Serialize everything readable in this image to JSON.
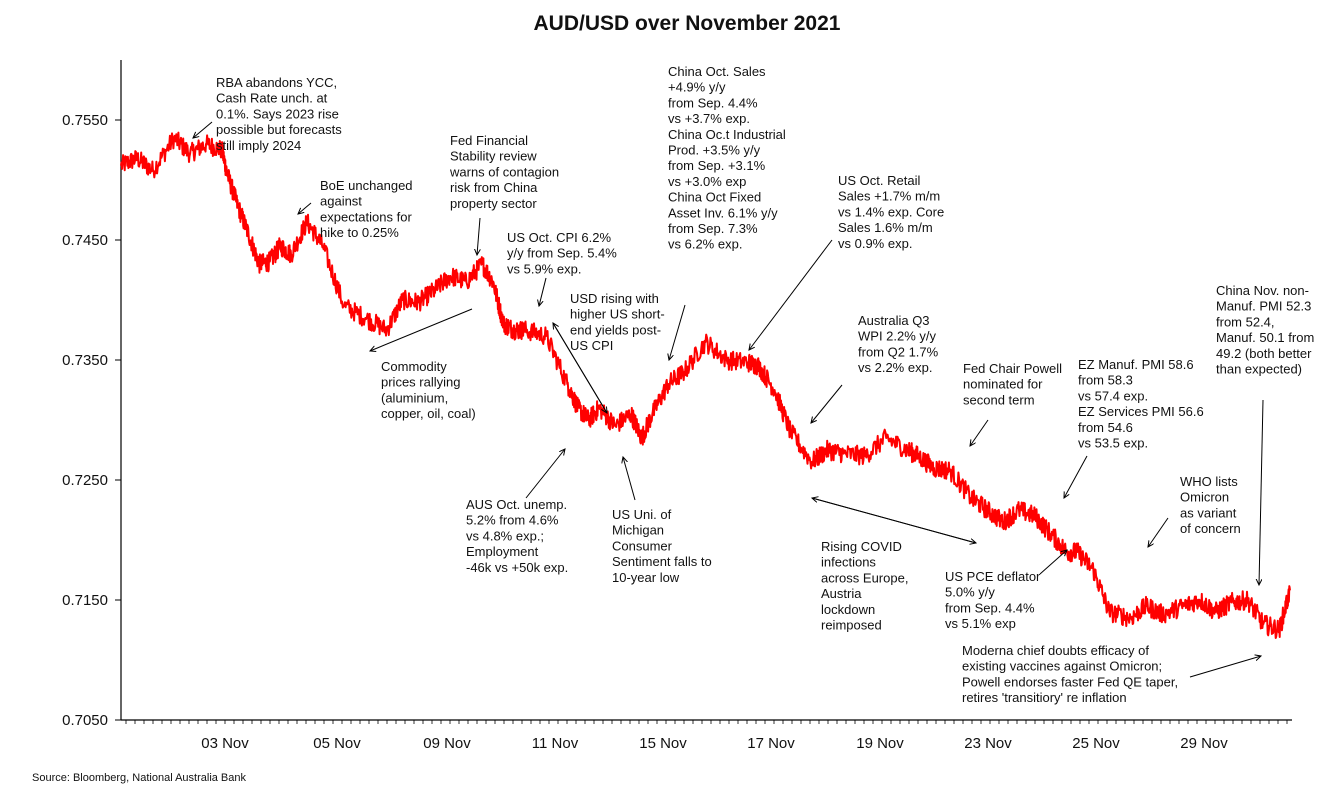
{
  "chart_data": {
    "type": "line",
    "title": "AUD/USD over November 2021",
    "xlabel": "",
    "ylabel": "",
    "ylim": [
      0.705,
      0.76
    ],
    "yticks": [
      "0.7550",
      "0.7450",
      "0.7350",
      "0.7250",
      "0.7150",
      "0.7050"
    ],
    "ytick_values": [
      0.755,
      0.745,
      0.735,
      0.725,
      0.715,
      0.705
    ],
    "xticks": [
      "03 Nov",
      "05 Nov",
      "09 Nov",
      "11 Nov",
      "15 Nov",
      "17 Nov",
      "19 Nov",
      "23 Nov",
      "25 Nov",
      "29 Nov"
    ],
    "xlim": [
      0,
      22
    ],
    "grid": false,
    "legend": "none",
    "line_color": "#ff0000",
    "series": [
      {
        "x": [
          0,
          0.3,
          0.6,
          1.0,
          1.3,
          1.6,
          1.9,
          2.0,
          2.2,
          2.4,
          2.6,
          2.8,
          3.0,
          3.2,
          3.5,
          3.8,
          4.2,
          4.6,
          5.0,
          5.3,
          5.6,
          5.9,
          6.2,
          6.5,
          6.8,
          7.0,
          7.2,
          7.4,
          7.6,
          8.0,
          8.4,
          8.6,
          8.8,
          9.0,
          9.3,
          9.6,
          9.8,
          10.0,
          10.3,
          10.6,
          11.0,
          11.4,
          11.8,
          12.0,
          12.3,
          12.6,
          13.0,
          13.3,
          13.6,
          14.0,
          14.4,
          14.8,
          15.0,
          15.3,
          15.6,
          16.0,
          16.3,
          16.6,
          16.9,
          17.2,
          17.5,
          17.8,
          18.0,
          18.3,
          18.6,
          19.0,
          19.3,
          19.6,
          20.0,
          20.3,
          20.6,
          20.9,
          21.2,
          21.5,
          21.8,
          22.0
        ],
        "y": [
          0.7512,
          0.7518,
          0.7508,
          0.7535,
          0.7522,
          0.753,
          0.7525,
          0.7505,
          0.7478,
          0.7455,
          0.743,
          0.7432,
          0.7445,
          0.7438,
          0.7465,
          0.7445,
          0.7395,
          0.7385,
          0.7375,
          0.74,
          0.7398,
          0.7408,
          0.742,
          0.7415,
          0.743,
          0.7415,
          0.738,
          0.7375,
          0.7375,
          0.737,
          0.733,
          0.731,
          0.73,
          0.731,
          0.7295,
          0.7305,
          0.7285,
          0.7305,
          0.733,
          0.734,
          0.7365,
          0.735,
          0.7348,
          0.7345,
          0.7325,
          0.729,
          0.7265,
          0.7275,
          0.7272,
          0.727,
          0.7285,
          0.7275,
          0.727,
          0.726,
          0.7258,
          0.7235,
          0.7225,
          0.7215,
          0.7225,
          0.722,
          0.7205,
          0.719,
          0.719,
          0.7175,
          0.714,
          0.7135,
          0.7145,
          0.7138,
          0.7145,
          0.715,
          0.714,
          0.7148,
          0.715,
          0.713,
          0.7125,
          0.7158
        ]
      }
    ],
    "annotations": [
      {
        "id": "rba",
        "lines": [
          "RBA abandons YCC,",
          "Cash Rate unch. at",
          "0.1%. Says 2023 rise",
          "possible but forecasts",
          "still imply 2024"
        ]
      },
      {
        "id": "boe",
        "lines": [
          "BoE unchanged",
          "against",
          "expectations for",
          "hike to 0.25%"
        ]
      },
      {
        "id": "fed-fsr",
        "lines": [
          "Fed Financial",
          "Stability review",
          "warns of contagion",
          "risk from China",
          "property sector"
        ]
      },
      {
        "id": "commodity",
        "lines": [
          "Commodity",
          "prices rallying",
          "(aluminium,",
          "copper, oil, coal)"
        ]
      },
      {
        "id": "us-cpi",
        "lines": [
          "US Oct. CPI 6.2%",
          "y/y from Sep. 5.4%",
          "vs 5.9% exp."
        ]
      },
      {
        "id": "usd-rising",
        "lines": [
          "USD rising with",
          "higher US short-",
          "end yields post-",
          "US CPI"
        ]
      },
      {
        "id": "aus-unemp",
        "lines": [
          "AUS Oct. unemp.",
          "5.2% from 4.6%",
          "vs 4.8% exp.;",
          "Employment",
          "-46k vs +50k exp."
        ]
      },
      {
        "id": "us-uni-mich",
        "lines": [
          "US Uni. of",
          "Michigan",
          "Consumer",
          "Sentiment falls to",
          "10-year low"
        ]
      },
      {
        "id": "china-data",
        "lines": [
          "China Oct. Sales",
          "+4.9% y/y",
          "from Sep. 4.4%",
          "vs +3.7% exp.",
          "",
          "China Oc.t Industrial",
          "Prod. +3.5% y/y",
          "from Sep. +3.1%",
          "vs +3.0% exp",
          "",
          "China Oct Fixed",
          "Asset Inv. 6.1% y/y",
          "from Sep. 7.3%",
          "vs 6.2% exp."
        ]
      },
      {
        "id": "us-retail",
        "lines": [
          "US Oct. Retail",
          "Sales +1.7% m/m",
          "vs 1.4% exp. Core",
          "Sales 1.6% m/m",
          "vs 0.9% exp."
        ]
      },
      {
        "id": "aus-wpi",
        "lines": [
          "Australia Q3",
          "WPI 2.2% y/y",
          "from Q2 1.7%",
          "vs 2.2% exp."
        ]
      },
      {
        "id": "covid",
        "lines": [
          "Rising COVID",
          "infections",
          "across Europe,",
          "Austria",
          "lockdown",
          "reimposed"
        ]
      },
      {
        "id": "powell",
        "lines": [
          "Fed Chair Powell",
          "nominated for",
          "second term"
        ]
      },
      {
        "id": "ez-pmi",
        "lines": [
          "EZ Manuf. PMI 58.6",
          "from 58.3",
          "vs 57.4 exp.",
          "EZ Services PMI 56.6",
          "from 54.6",
          "vs 53.5 exp."
        ]
      },
      {
        "id": "us-pce",
        "lines": [
          "US PCE deflator",
          "5.0% y/y",
          "from Sep. 4.4%",
          "vs 5.1% exp"
        ]
      },
      {
        "id": "who",
        "lines": [
          "WHO lists",
          "Omicron",
          "as variant",
          "of concern"
        ]
      },
      {
        "id": "china-pmi",
        "lines": [
          "China Nov. non-",
          "Manuf. PMI 52.3",
          "from 52.4,",
          "Manuf. 50.1 from",
          "49.2 (both better",
          "than expected)"
        ]
      },
      {
        "id": "moderna",
        "lines": [
          "Moderna chief doubts efficacy of",
          "existing vaccines against  Omicron;",
          "Powell endorses faster Fed QE taper,",
          "retires 'transitiory' re inflation"
        ]
      }
    ],
    "source": "Source: Bloomberg, National Australia Bank"
  }
}
